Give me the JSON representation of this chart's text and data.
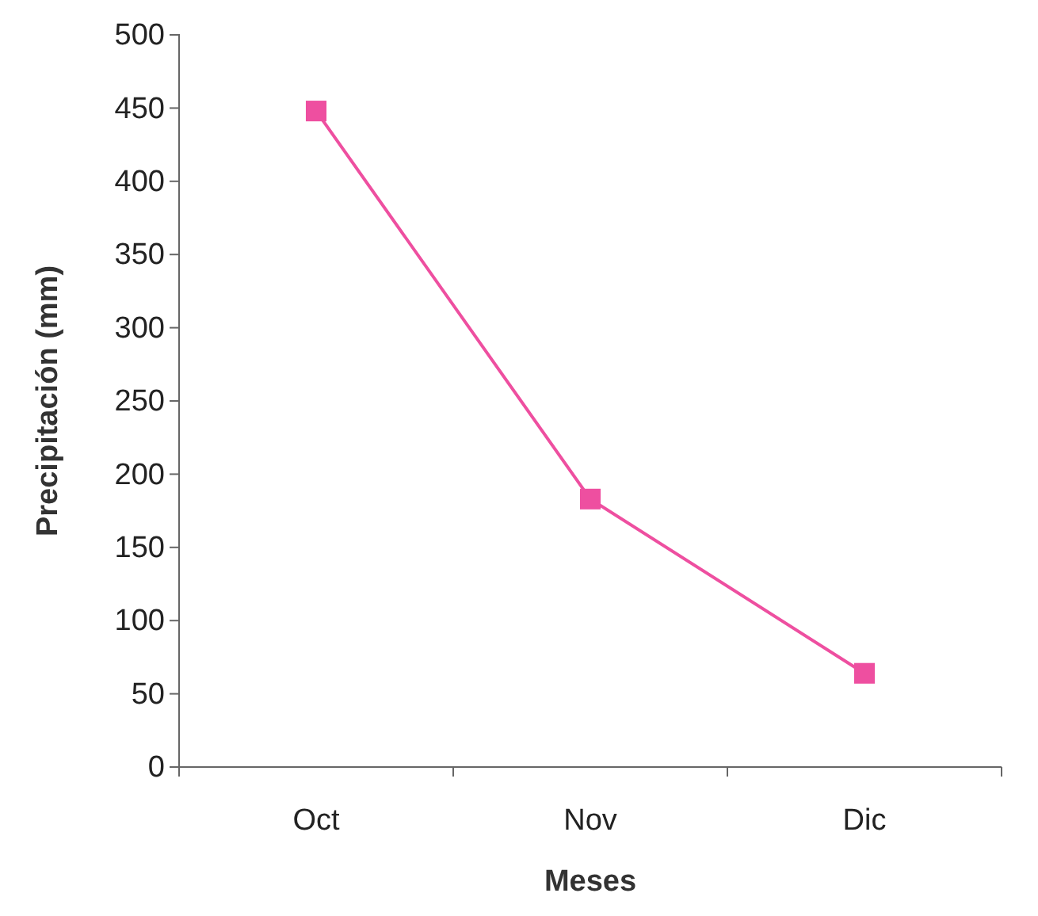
{
  "chart_data": {
    "type": "line",
    "xlabel": "Meses",
    "ylabel": "Precipitación (mm)",
    "categories": [
      "Oct",
      "Nov",
      "Dic"
    ],
    "series": [
      {
        "color": "#ee4fa0",
        "values": [
          448,
          183,
          64
        ]
      }
    ],
    "ylim": [
      0,
      500
    ],
    "yticks": [
      0,
      50,
      100,
      150,
      200,
      250,
      300,
      350,
      400,
      450,
      500
    ],
    "marker": "square",
    "line_style": "solid"
  }
}
